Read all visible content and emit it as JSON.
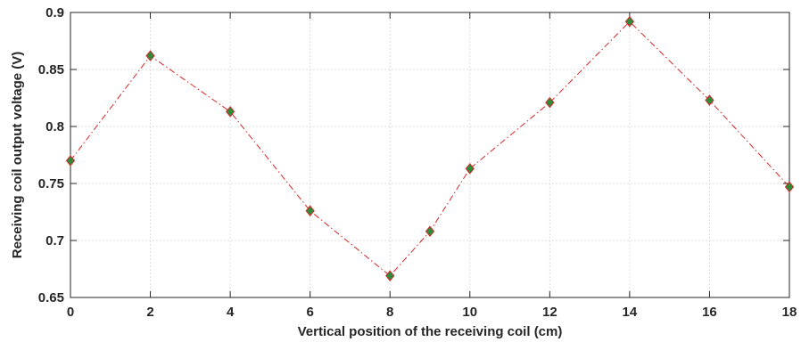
{
  "chart_data": {
    "type": "line",
    "title": "",
    "xlabel": "Vertical position of the receiving coil (cm)",
    "ylabel": "Receiving coil output voltage (V)",
    "xlim": [
      0,
      18
    ],
    "ylim": [
      0.65,
      0.9
    ],
    "xticks": [
      0,
      2,
      4,
      6,
      8,
      10,
      12,
      14,
      16,
      18
    ],
    "yticks": [
      0.65,
      0.7,
      0.75,
      0.8,
      0.85,
      0.9
    ],
    "xtick_labels": [
      "0",
      "2",
      "4",
      "6",
      "8",
      "10",
      "12",
      "14",
      "16",
      "18"
    ],
    "ytick_labels": [
      "0.65",
      "0.7",
      "0.75",
      "0.8",
      "0.85",
      "0.9"
    ],
    "grid": true,
    "legend": "none",
    "series": [
      {
        "line_color": "#d62728",
        "marker": "diamond",
        "marker_fill": "#2e8b3a",
        "marker_edge": "#d62728",
        "line_style": "dash-dot",
        "x": [
          0,
          2,
          4,
          6,
          8,
          9,
          10,
          12,
          14,
          16,
          18
        ],
        "y": [
          0.77,
          0.862,
          0.813,
          0.726,
          0.669,
          0.708,
          0.763,
          0.821,
          0.892,
          0.823,
          0.747
        ]
      }
    ]
  }
}
